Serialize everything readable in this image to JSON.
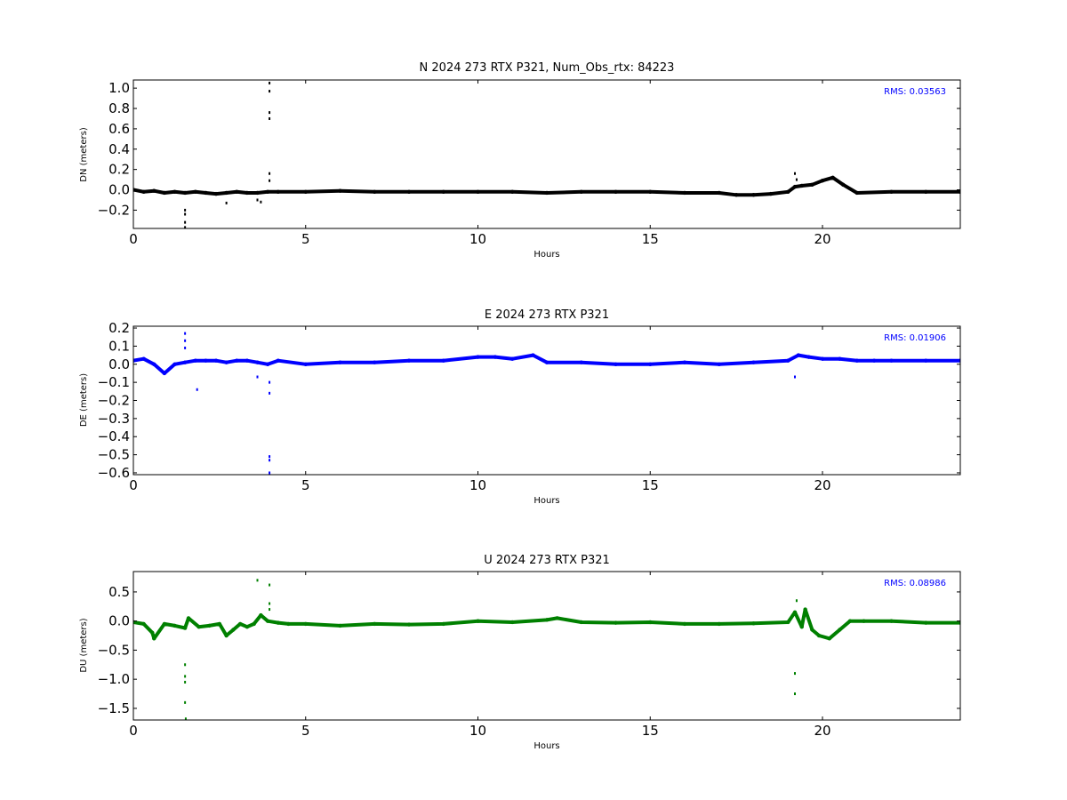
{
  "chart_data": [
    {
      "type": "scatter",
      "title": "N 2024 273 RTX  P321, Num_Obs_rtx: 84223",
      "xlabel": "Hours",
      "ylabel": "DN (meters)",
      "xlim": [
        0,
        24
      ],
      "ylim": [
        -0.38,
        1.08
      ],
      "xticks": [
        0,
        5,
        10,
        15,
        20
      ],
      "yticks": [
        -0.2,
        0.0,
        0.2,
        0.4,
        0.6,
        0.8,
        1.0
      ],
      "ytick_labels": [
        "−0.2",
        "0.0",
        "0.2",
        "0.4",
        "0.6",
        "0.8",
        "1.0"
      ],
      "color": "#000000",
      "grid": false,
      "annotation": "RMS:  0.03563",
      "annotation_color": "#0000ff",
      "series": [
        {
          "x": [
            0.0,
            0.3,
            0.6,
            0.9,
            1.2,
            1.5,
            1.8,
            2.1,
            2.4,
            2.7,
            3.0,
            3.3,
            3.6,
            3.9,
            4.2,
            5.0,
            6.0,
            7.0,
            8.0,
            9.0,
            10.0,
            11.0,
            12.0,
            13.0,
            14.0,
            15.0,
            16.0,
            17.0,
            17.5,
            18.0,
            18.5,
            19.0,
            19.2,
            19.4,
            19.7,
            20.0,
            20.3,
            20.6,
            21.0,
            22.0,
            23.0,
            24.0
          ],
          "y": [
            0.0,
            -0.02,
            -0.01,
            -0.03,
            -0.02,
            -0.03,
            -0.02,
            -0.03,
            -0.04,
            -0.03,
            -0.02,
            -0.03,
            -0.03,
            -0.02,
            -0.02,
            -0.02,
            -0.01,
            -0.02,
            -0.02,
            -0.02,
            -0.02,
            -0.02,
            -0.03,
            -0.02,
            -0.02,
            -0.02,
            -0.03,
            -0.03,
            -0.05,
            -0.05,
            -0.04,
            -0.02,
            0.03,
            0.04,
            0.05,
            0.09,
            0.12,
            0.05,
            -0.03,
            -0.02,
            -0.02,
            -0.02
          ]
        }
      ],
      "outliers": {
        "x": [
          1.5,
          1.5,
          1.5,
          1.5,
          2.7,
          3.6,
          3.7,
          3.95,
          3.95,
          3.95,
          3.95,
          3.95,
          3.95,
          19.2,
          19.25
        ],
        "y": [
          -0.2,
          -0.24,
          -0.32,
          -0.37,
          -0.13,
          -0.1,
          -0.12,
          1.05,
          0.97,
          0.76,
          0.7,
          0.16,
          0.09,
          0.16,
          0.1
        ]
      }
    },
    {
      "type": "scatter",
      "title": "E 2024 273 RTX  P321",
      "xlabel": "Hours",
      "ylabel": "DE (meters)",
      "xlim": [
        0,
        24
      ],
      "ylim": [
        -0.61,
        0.21
      ],
      "xticks": [
        0,
        5,
        10,
        15,
        20
      ],
      "yticks": [
        -0.6,
        -0.5,
        -0.4,
        -0.3,
        -0.2,
        -0.1,
        0.0,
        0.1,
        0.2
      ],
      "ytick_labels": [
        "−0.6",
        "−0.5",
        "−0.4",
        "−0.3",
        "−0.2",
        "−0.1",
        "0.0",
        "0.1",
        "0.2"
      ],
      "color": "#0000ff",
      "grid": false,
      "annotation": "RMS:  0.01906",
      "annotation_color": "#0000ff",
      "series": [
        {
          "x": [
            0.0,
            0.3,
            0.6,
            0.9,
            1.2,
            1.5,
            1.8,
            2.1,
            2.4,
            2.7,
            3.0,
            3.3,
            3.6,
            3.9,
            4.2,
            5.0,
            6.0,
            7.0,
            8.0,
            9.0,
            10.0,
            10.5,
            11.0,
            11.6,
            12.0,
            13.0,
            14.0,
            15.0,
            16.0,
            17.0,
            18.0,
            19.0,
            19.3,
            19.6,
            20.0,
            20.5,
            21.0,
            21.5,
            22.0,
            23.0,
            24.0
          ],
          "y": [
            0.02,
            0.03,
            0.0,
            -0.05,
            0.0,
            0.01,
            0.02,
            0.02,
            0.02,
            0.01,
            0.02,
            0.02,
            0.01,
            0.0,
            0.02,
            0.0,
            0.01,
            0.01,
            0.02,
            0.02,
            0.04,
            0.04,
            0.03,
            0.05,
            0.01,
            0.01,
            0.0,
            0.0,
            0.01,
            0.0,
            0.01,
            0.02,
            0.05,
            0.04,
            0.03,
            0.03,
            0.02,
            0.02,
            0.02,
            0.02,
            0.02
          ]
        }
      ],
      "outliers": {
        "x": [
          1.5,
          1.5,
          1.5,
          1.85,
          3.6,
          3.95,
          3.95,
          3.95,
          3.95,
          3.95,
          19.2
        ],
        "y": [
          0.17,
          0.13,
          0.09,
          -0.14,
          -0.07,
          -0.1,
          -0.16,
          -0.51,
          -0.53,
          -0.6,
          -0.07
        ]
      }
    },
    {
      "type": "scatter",
      "title": "U 2024 273 RTX  P321",
      "xlabel": "Hours",
      "ylabel": "DU (meters)",
      "xlim": [
        0,
        24
      ],
      "ylim": [
        -1.7,
        0.85
      ],
      "xticks": [
        0,
        5,
        10,
        15,
        20
      ],
      "yticks": [
        -1.5,
        -1.0,
        -0.5,
        0.0,
        0.5
      ],
      "ytick_labels": [
        "−1.5",
        "−1.0",
        "−0.5",
        "0.0",
        "0.5"
      ],
      "color": "#008000",
      "grid": false,
      "annotation": "RMS:  0.08986",
      "annotation_color": "#0000ff",
      "series": [
        {
          "x": [
            0.0,
            0.3,
            0.55,
            0.6,
            0.9,
            1.2,
            1.5,
            1.6,
            1.9,
            2.2,
            2.5,
            2.7,
            2.9,
            3.1,
            3.3,
            3.5,
            3.7,
            3.9,
            4.2,
            4.5,
            5.0,
            6.0,
            7.0,
            8.0,
            9.0,
            10.0,
            11.0,
            12.0,
            12.3,
            13.0,
            14.0,
            15.0,
            16.0,
            17.0,
            18.0,
            19.0,
            19.2,
            19.4,
            19.5,
            19.7,
            19.9,
            20.2,
            20.5,
            20.8,
            21.2,
            22.0,
            23.0,
            24.0
          ],
          "y": [
            -0.02,
            -0.05,
            -0.2,
            -0.3,
            -0.05,
            -0.08,
            -0.12,
            0.05,
            -0.1,
            -0.08,
            -0.05,
            -0.25,
            -0.15,
            -0.05,
            -0.1,
            -0.05,
            0.1,
            0.0,
            -0.03,
            -0.05,
            -0.05,
            -0.08,
            -0.05,
            -0.06,
            -0.05,
            0.0,
            -0.02,
            0.02,
            0.05,
            -0.02,
            -0.03,
            -0.02,
            -0.05,
            -0.05,
            -0.04,
            -0.02,
            0.15,
            -0.1,
            0.2,
            -0.15,
            -0.25,
            -0.3,
            -0.15,
            0.0,
            0.0,
            0.0,
            -0.03,
            -0.03
          ]
        }
      ],
      "outliers": {
        "x": [
          1.5,
          1.5,
          1.5,
          1.5,
          1.52,
          3.6,
          3.95,
          3.95,
          3.95,
          19.2,
          19.2,
          19.25
        ],
        "y": [
          -0.75,
          -0.95,
          -1.05,
          -1.4,
          -1.68,
          0.7,
          0.62,
          0.3,
          0.2,
          -0.9,
          -1.25,
          0.35
        ]
      }
    }
  ]
}
